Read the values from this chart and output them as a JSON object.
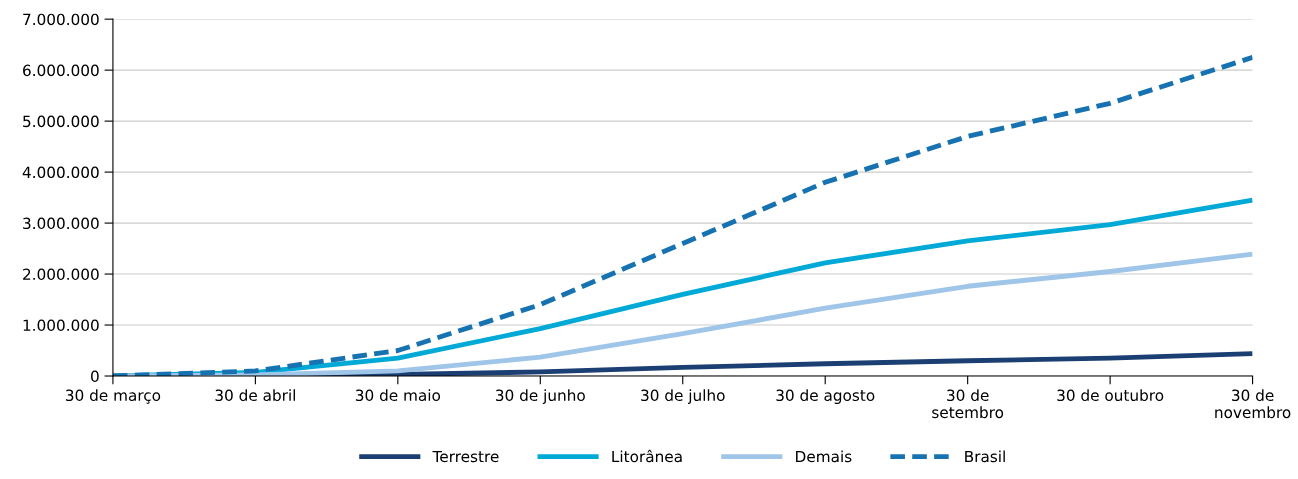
{
  "chart_data": {
    "type": "line",
    "categories": [
      "30 de março",
      "30 de abril",
      "30 de maio",
      "30 de junho",
      "30 de julho",
      "30 de agosto",
      "30 de\nsetembro",
      "30 de outubro",
      "30 de\nnovembro"
    ],
    "series": [
      {
        "name": "Terrestre",
        "color": "#1b3f73",
        "line_style": "solid",
        "values": [
          0,
          5000,
          30000,
          80000,
          170000,
          240000,
          300000,
          350000,
          440000
        ]
      },
      {
        "name": "Litorânea",
        "color": "#00a9d6",
        "line_style": "solid",
        "values": [
          0,
          70000,
          350000,
          930000,
          1600000,
          2220000,
          2650000,
          2970000,
          3450000
        ]
      },
      {
        "name": "Demais",
        "color": "#9fc5e8",
        "line_style": "solid",
        "values": [
          0,
          20000,
          100000,
          370000,
          830000,
          1330000,
          1760000,
          2050000,
          2390000
        ]
      },
      {
        "name": "Brasil",
        "color": "#1672b0",
        "line_style": "dashed",
        "values": [
          0,
          100000,
          500000,
          1400000,
          2600000,
          3800000,
          4700000,
          5350000,
          6250000
        ]
      }
    ],
    "ylim": [
      0,
      7000000
    ],
    "yticks": [
      {
        "value": 0,
        "label": "0"
      },
      {
        "value": 1000000,
        "label": "1.000.000"
      },
      {
        "value": 2000000,
        "label": "2.000.000"
      },
      {
        "value": 3000000,
        "label": "3.000.000"
      },
      {
        "value": 4000000,
        "label": "4.000.000"
      },
      {
        "value": 5000000,
        "label": "5.000.000"
      },
      {
        "value": 6000000,
        "label": "6.000.000"
      },
      {
        "value": 7000000,
        "label": "7.000.000"
      }
    ],
    "grid": "y",
    "legend": "bottom",
    "marker": "none"
  }
}
